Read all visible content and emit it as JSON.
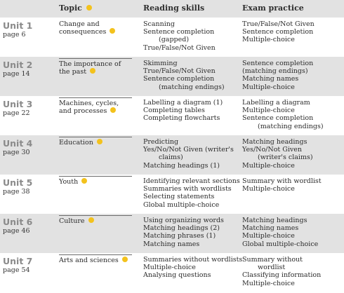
{
  "header": {
    "topic": "Topic",
    "reading": "Reading skills",
    "exam": "Exam practice"
  },
  "units": [
    {
      "name": "Unit 1",
      "page": "page 6",
      "topic": [
        "Change and",
        "consequences"
      ],
      "reading": [
        "Scanning",
        "Sentence completion",
        "(gapped)",
        "True/False/Not Given"
      ],
      "exam": [
        "True/False/Not Given",
        "Sentence completion",
        "Multiple-choice"
      ]
    },
    {
      "name": "Unit 2",
      "page": "page 14",
      "topic": [
        "The importance of",
        "the past"
      ],
      "reading": [
        "Skimming",
        "True/False/Not Given",
        "Sentence completion",
        "(matching endings)"
      ],
      "exam": [
        "Sentence completion",
        "(matching endings)",
        "Matching names",
        "Multiple-choice"
      ]
    },
    {
      "name": "Unit 3",
      "page": "page 22",
      "topic": [
        "Machines, cycles,",
        "and processes"
      ],
      "reading": [
        "Labelling a diagram (1)",
        "Completing tables",
        "Completing flowcharts"
      ],
      "exam": [
        "Labelling a diagram",
        "Multiple-choice",
        "Sentence completion",
        "(matching endings)"
      ]
    },
    {
      "name": "Unit 4",
      "page": "page 30",
      "topic": [
        "Education"
      ],
      "reading": [
        "Predicting",
        "Yes/No/Not Given (writer's",
        "claims)",
        "Matching headings (1)"
      ],
      "exam": [
        "Matching headings",
        "Yes/No/Not Given",
        "(writer's claims)",
        "Multiple-choice"
      ]
    },
    {
      "name": "Unit 5",
      "page": "page 38",
      "topic": [
        "Youth"
      ],
      "reading": [
        "Identifying relevant sections",
        "Summaries with wordlists",
        "Selecting statements",
        "Global multiple-choice"
      ],
      "exam": [
        "Summary with wordlist",
        "Multiple-choice"
      ]
    },
    {
      "name": "Unit 6",
      "page": "page 46",
      "topic": [
        "Culture"
      ],
      "reading": [
        "Using organizing words",
        "Matching headings (2)",
        "Matching phrases (1)",
        "Matching names"
      ],
      "exam": [
        "Matching headings",
        "Matching names",
        "Multiple-choice",
        "Global multiple-choice"
      ]
    },
    {
      "name": "Unit 7",
      "page": "page 54",
      "topic": [
        "Arts and sciences"
      ],
      "reading": [
        "Summaries without wordlists",
        "Multiple-choice",
        "Analysing questions"
      ],
      "exam": [
        "Summary without",
        "wordlist",
        "Classifying information",
        "Multiple-choice"
      ]
    }
  ]
}
